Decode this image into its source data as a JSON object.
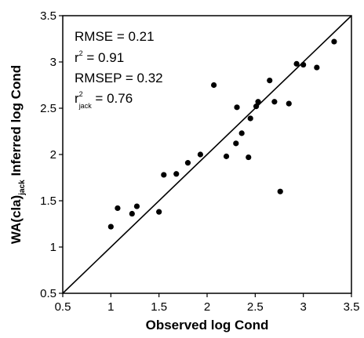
{
  "chart_data": {
    "type": "scatter",
    "xlabel": "Observed log Cond",
    "ylabel": {
      "prefix": "WA(cla)",
      "subscript": "jack",
      "suffix": " Inferred log Cond"
    },
    "xlim": [
      0.5,
      3.5
    ],
    "ylim": [
      0.5,
      3.5
    ],
    "x_ticks": [
      "0.5",
      "1",
      "1.5",
      "2",
      "2.5",
      "3",
      "3.5"
    ],
    "y_ticks": [
      "0.5",
      "1",
      "1.5",
      "2",
      "2.5",
      "3",
      "3.5"
    ],
    "grid": false,
    "reference_line": {
      "type": "1:1",
      "from": [
        0.5,
        0.5
      ],
      "to": [
        3.5,
        3.5
      ]
    },
    "annotations": [
      {
        "base": "RMSE",
        "sup": "",
        "sub": "",
        "rest": " = 0.21"
      },
      {
        "base": "r",
        "sup": "2",
        "sub": "",
        "rest": " = 0.91"
      },
      {
        "base": "RMSEP",
        "sup": "",
        "sub": "",
        "rest": " = 0.32"
      },
      {
        "base": "r",
        "sup": "2",
        "sub": "jack",
        "rest": " = 0.76"
      }
    ],
    "points": [
      {
        "x": 1.0,
        "y": 1.22
      },
      {
        "x": 1.07,
        "y": 1.42
      },
      {
        "x": 1.22,
        "y": 1.36
      },
      {
        "x": 1.27,
        "y": 1.44
      },
      {
        "x": 1.5,
        "y": 1.38
      },
      {
        "x": 1.55,
        "y": 1.78
      },
      {
        "x": 1.68,
        "y": 1.79
      },
      {
        "x": 1.8,
        "y": 1.91
      },
      {
        "x": 1.93,
        "y": 2.0
      },
      {
        "x": 2.07,
        "y": 2.75
      },
      {
        "x": 2.2,
        "y": 1.98
      },
      {
        "x": 2.3,
        "y": 2.12
      },
      {
        "x": 2.31,
        "y": 2.51
      },
      {
        "x": 2.36,
        "y": 2.23
      },
      {
        "x": 2.43,
        "y": 1.97
      },
      {
        "x": 2.45,
        "y": 2.39
      },
      {
        "x": 2.51,
        "y": 2.52
      },
      {
        "x": 2.53,
        "y": 2.57
      },
      {
        "x": 2.65,
        "y": 2.8
      },
      {
        "x": 2.7,
        "y": 2.57
      },
      {
        "x": 2.76,
        "y": 1.6
      },
      {
        "x": 2.85,
        "y": 2.55
      },
      {
        "x": 2.93,
        "y": 2.98
      },
      {
        "x": 3.0,
        "y": 2.97
      },
      {
        "x": 3.14,
        "y": 2.94
      },
      {
        "x": 3.32,
        "y": 3.22
      }
    ],
    "colors": {
      "marker": "#000000",
      "line": "#000000",
      "axes": "#000000"
    }
  }
}
